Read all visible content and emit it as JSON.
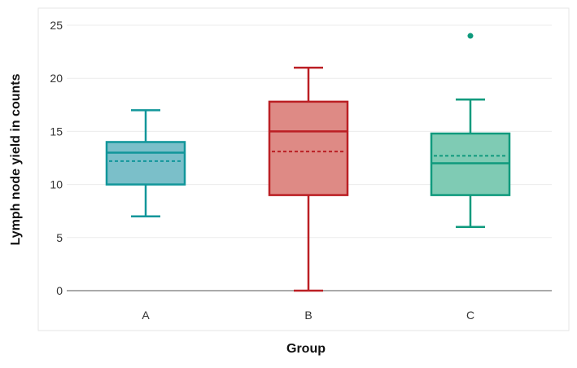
{
  "chart_data": {
    "type": "box",
    "title": "",
    "xlabel": "Group",
    "ylabel": "Lymph node yield in counts",
    "ylim": [
      0,
      25
    ],
    "yticks": [
      0,
      5,
      10,
      15,
      20,
      25
    ],
    "grid": true,
    "categories": [
      "A",
      "B",
      "C"
    ],
    "boxes": [
      {
        "name": "A",
        "whisker_low": 7,
        "q1": 10,
        "median": 13,
        "mean": 12.2,
        "q3": 14,
        "whisker_high": 17,
        "outliers": [],
        "fill": "#7bbfc9",
        "stroke": "#11969a"
      },
      {
        "name": "B",
        "whisker_low": 0,
        "q1": 9,
        "median": 15,
        "mean": 13.1,
        "q3": 17.8,
        "whisker_high": 21,
        "outliers": [],
        "fill": "#de8a85",
        "stroke": "#bb1f24"
      },
      {
        "name": "C",
        "whisker_low": 6,
        "q1": 9,
        "median": 12,
        "mean": 12.7,
        "q3": 14.8,
        "whisker_high": 18,
        "outliers": [
          24
        ],
        "fill": "#7fcbb4",
        "stroke": "#0f9a7d"
      }
    ]
  }
}
